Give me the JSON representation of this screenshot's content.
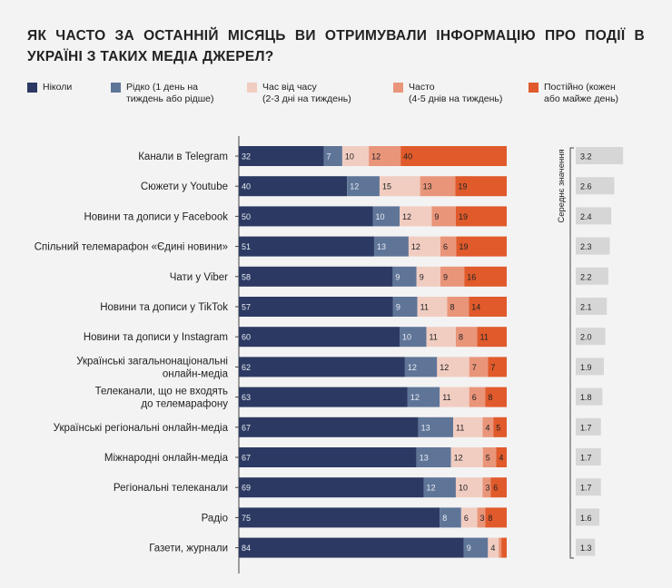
{
  "chart_data": {
    "type": "bar",
    "orientation": "horizontal-stacked-percent",
    "title": "ЯК ЧАСТО ЗА ОСТАННІЙ МІСЯЦЬ ВИ ОТРИМУВАЛИ ІНФОРМАЦІЮ ПРО ПОДІЇ В УКРАЇНІ З ТАКИХ МЕДІА ДЖЕРЕЛ?",
    "legend_placement": "top",
    "categories": [
      [
        "Канали в Telegram"
      ],
      [
        "Сюжети у Youtube"
      ],
      [
        "Новини та дописи у Facebook"
      ],
      [
        "Спільний телемарафон «Єдині новини»"
      ],
      [
        "Чати у Viber"
      ],
      [
        "Новини та дописи у TikTok"
      ],
      [
        "Новини та дописи у Instagram"
      ],
      [
        "Українські загальнонаціональні",
        "онлайн-медіа"
      ],
      [
        "Телеканали, що не входять",
        "до телемарафону"
      ],
      [
        "Українські регіональні онлайн-медіа"
      ],
      [
        "Міжнародні онлайн-медіа"
      ],
      [
        "Регіональні телеканали"
      ],
      [
        "Радіо"
      ],
      [
        "Газети, журнали"
      ]
    ],
    "series": [
      {
        "name": "Ніколи",
        "name_lines": [
          "Ніколи"
        ],
        "color": "#2c3a63",
        "values": [
          32,
          40,
          50,
          51,
          58,
          57,
          60,
          62,
          63,
          67,
          67,
          69,
          75,
          84
        ]
      },
      {
        "name": "Рідко (1 день на тиждень або рідше)",
        "name_lines": [
          "Рідко (1 день на",
          "тиждень або рідше)"
        ],
        "color": "#5f7598",
        "values": [
          7,
          12,
          10,
          13,
          9,
          9,
          10,
          12,
          12,
          13,
          13,
          12,
          8,
          9
        ]
      },
      {
        "name": "Час від часу (2-3 дні на тиждень)",
        "name_lines": [
          "Час від часу",
          "(2-3 дні на тиждень)"
        ],
        "color": "#f1cdc1",
        "values": [
          10,
          15,
          12,
          12,
          9,
          11,
          11,
          12,
          11,
          11,
          12,
          10,
          6,
          4
        ]
      },
      {
        "name": "Часто (4-5 днів на тиждень)",
        "name_lines": [
          "Часто",
          "(4-5 днів на тиждень)"
        ],
        "color": "#e9957a",
        "values": [
          12,
          13,
          9,
          6,
          9,
          8,
          8,
          7,
          6,
          4,
          5,
          3,
          3,
          1
        ]
      },
      {
        "name": "Постійно (кожен або майже день)",
        "name_lines": [
          "Постійно (кожен",
          "або майже день)"
        ],
        "color": "#e05a2b",
        "values": [
          40,
          19,
          19,
          19,
          16,
          14,
          11,
          7,
          8,
          5,
          4,
          6,
          8,
          2
        ]
      }
    ],
    "hidden_labels": {
      "13": [
        3,
        4
      ]
    },
    "mean": {
      "label": "Середнє значення",
      "values": [
        3.2,
        2.6,
        2.4,
        2.3,
        2.2,
        2.1,
        2.0,
        1.9,
        1.8,
        1.7,
        1.7,
        1.7,
        1.6,
        1.3
      ],
      "display": [
        "3.2",
        "2.6",
        "2.4",
        "2.3",
        "2.2",
        "2.1",
        "2.0",
        "1.9",
        "1.8",
        "1.7",
        "1.7",
        "1.7",
        "1.6",
        "1.3"
      ],
      "color": "#d6d6d6"
    }
  }
}
